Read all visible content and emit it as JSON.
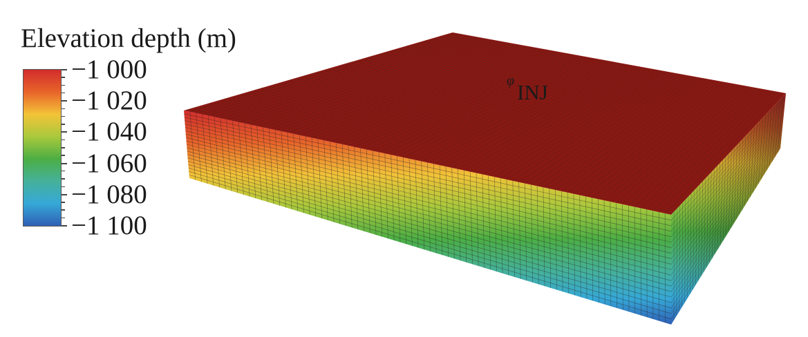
{
  "legend": {
    "title": "Elevation depth (m)",
    "ticks": [
      "−1 000",
      "−1 020",
      "−1 040",
      "−1 060",
      "−1 080",
      "−1 100"
    ],
    "color_stops": [
      "#d22c2c",
      "#e8642a",
      "#f3c338",
      "#a9c93c",
      "#4cae44",
      "#45b19a",
      "#36a8d7",
      "#2f5fb5"
    ]
  },
  "model": {
    "top_color": "#8e1812",
    "grid_line_color": "#222222",
    "injector": {
      "label": "INJ",
      "symbol": "φ"
    }
  }
}
